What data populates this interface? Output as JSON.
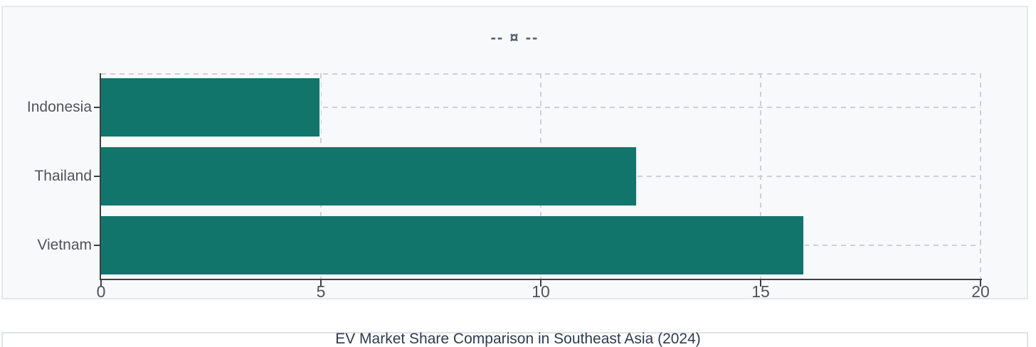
{
  "legend": {
    "label": "-- ¤ --"
  },
  "chart_data": {
    "type": "bar",
    "orientation": "horizontal",
    "title": "EV Market Share Comparison in Southeast Asia (2024)",
    "categories": [
      "Indonesia",
      "Thailand",
      "Vietnam"
    ],
    "values": [
      5.0,
      12.2,
      16.0
    ],
    "xlabel": "",
    "ylabel": "",
    "xlim": [
      0,
      20
    ],
    "xticks": [
      0,
      5,
      10,
      15,
      20
    ],
    "grid": "dashed",
    "legend_position": "top-center",
    "bar_color": "#11756c",
    "axis_color": "#3b4046",
    "grid_color": "#ccd1d8",
    "card_background": "#f8f9fb"
  }
}
